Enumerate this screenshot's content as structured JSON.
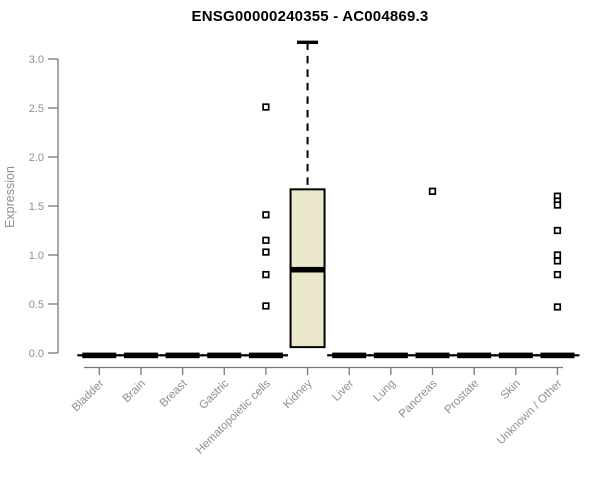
{
  "page": {
    "background": "#ffffff"
  },
  "chart_data": {
    "type": "boxplot",
    "title": "ENSG00000240355 - AC004869.3",
    "ylabel": "Expression",
    "xlabel": "",
    "ylim": [
      0.0,
      3.0
    ],
    "yticks": [
      0.0,
      0.5,
      1.0,
      1.5,
      2.0,
      2.5,
      3.0
    ],
    "ytick_labels": [
      "0.0",
      "0.5",
      "1.0",
      "1.5",
      "2.0",
      "2.5",
      "3.0"
    ],
    "grid": false,
    "legend": false,
    "categories": [
      "Bladder",
      "Brain",
      "Breast",
      "Gastric",
      "Hematopoietic cells",
      "Kidney",
      "Liver",
      "Lung",
      "Pancreas",
      "Prostate",
      "Skin",
      "Unknown / Other"
    ],
    "boxes": [
      {
        "category": "Bladder",
        "q1": 0,
        "median": 0,
        "q3": 0,
        "whisker_low": 0,
        "whisker_high": 0,
        "outliers": []
      },
      {
        "category": "Brain",
        "q1": 0,
        "median": 0,
        "q3": 0,
        "whisker_low": 0,
        "whisker_high": 0,
        "outliers": []
      },
      {
        "category": "Breast",
        "q1": 0,
        "median": 0,
        "q3": 0,
        "whisker_low": 0,
        "whisker_high": 0,
        "outliers": []
      },
      {
        "category": "Gastric",
        "q1": 0,
        "median": 0,
        "q3": 0,
        "whisker_low": 0,
        "whisker_high": 0,
        "outliers": []
      },
      {
        "category": "Hematopoietic cells",
        "q1": 0,
        "median": 0,
        "q3": 0,
        "whisker_low": 0,
        "whisker_high": 0,
        "outliers": [
          2.51,
          1.41,
          1.15,
          1.03,
          0.8,
          0.48
        ]
      },
      {
        "category": "Kidney",
        "q1": 0.06,
        "median": 0.85,
        "q3": 1.67,
        "whisker_low": 0.06,
        "whisker_high": 3.17,
        "outliers": []
      },
      {
        "category": "Liver",
        "q1": 0,
        "median": 0,
        "q3": 0,
        "whisker_low": 0,
        "whisker_high": 0,
        "outliers": []
      },
      {
        "category": "Lung",
        "q1": 0,
        "median": 0,
        "q3": 0,
        "whisker_low": 0,
        "whisker_high": 0,
        "outliers": []
      },
      {
        "category": "Pancreas",
        "q1": 0,
        "median": 0,
        "q3": 0,
        "whisker_low": 0,
        "whisker_high": 0,
        "outliers": [
          1.65
        ]
      },
      {
        "category": "Prostate",
        "q1": 0,
        "median": 0,
        "q3": 0,
        "whisker_low": 0,
        "whisker_high": 0,
        "outliers": []
      },
      {
        "category": "Skin",
        "q1": 0,
        "median": 0,
        "q3": 0,
        "whisker_low": 0,
        "whisker_high": 0,
        "outliers": []
      },
      {
        "category": "Unknown / Other",
        "q1": 0,
        "median": 0,
        "q3": 0,
        "whisker_low": 0,
        "whisker_high": 0,
        "outliers": [
          1.6,
          1.55,
          1.51,
          1.25,
          1.0,
          0.94,
          0.8,
          0.47
        ]
      }
    ],
    "colors": {
      "box_fill": "#ece8cc",
      "box_line": "#000000",
      "axis_line": "#7a7a7a",
      "label_text": "#8f8f8f",
      "title_text": "#000000",
      "background": "#ffffff"
    }
  }
}
